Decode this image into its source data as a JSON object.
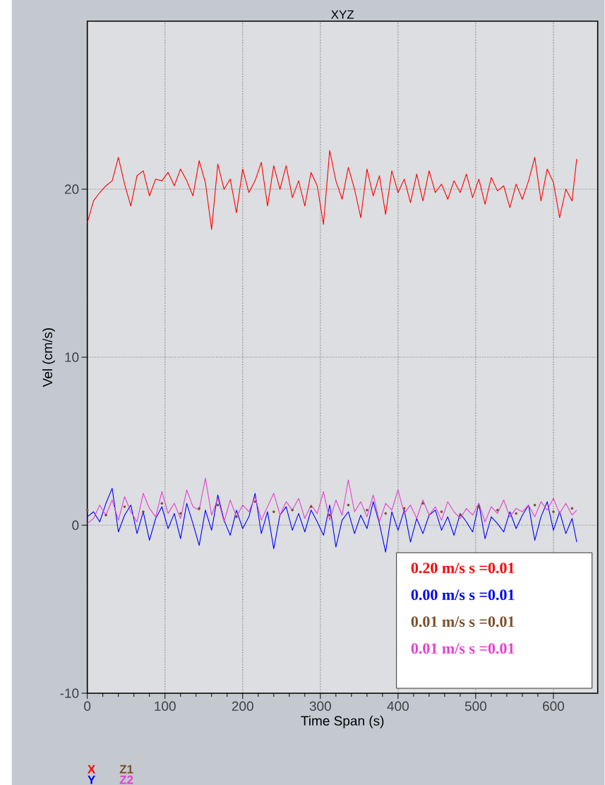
{
  "chart_data": {
    "type": "line",
    "title": "XYZ",
    "xlabel": "Time Span (s)",
    "ylabel": "Vel (cm/s)",
    "x": [
      0,
      8,
      16,
      24,
      32,
      40,
      48,
      56,
      64,
      72,
      80,
      88,
      96,
      104,
      112,
      120,
      128,
      136,
      144,
      152,
      160,
      168,
      176,
      184,
      192,
      200,
      208,
      216,
      224,
      232,
      240,
      248,
      256,
      264,
      272,
      280,
      288,
      296,
      304,
      312,
      320,
      328,
      336,
      344,
      352,
      360,
      368,
      376,
      384,
      392,
      400,
      408,
      416,
      424,
      432,
      440,
      448,
      456,
      464,
      472,
      480,
      488,
      496,
      504,
      512,
      520,
      528,
      536,
      544,
      552,
      560,
      568,
      576,
      584,
      592,
      600,
      608,
      616,
      624,
      630
    ],
    "series": [
      {
        "name": "X",
        "color": "#ff0000",
        "values": [
          18.0,
          19.3,
          19.8,
          20.2,
          20.5,
          21.9,
          20.3,
          19.0,
          20.8,
          21.1,
          19.6,
          20.6,
          20.5,
          21.0,
          20.2,
          21.2,
          20.5,
          19.6,
          21.7,
          20.4,
          17.6,
          21.5,
          20.0,
          20.6,
          18.6,
          21.2,
          19.8,
          20.5,
          21.6,
          19.0,
          21.4,
          20.0,
          21.4,
          19.5,
          20.5,
          19.0,
          21.0,
          20.2,
          17.9,
          22.3,
          20.5,
          19.4,
          21.3,
          20.0,
          18.3,
          21.2,
          19.6,
          20.8,
          18.5,
          21.1,
          19.8,
          20.6,
          19.2,
          20.9,
          19.3,
          21.1,
          19.8,
          20.3,
          19.4,
          20.5,
          19.8,
          20.9,
          19.5,
          20.6,
          19.1,
          20.7,
          19.9,
          20.2,
          18.9,
          20.3,
          19.4,
          20.5,
          21.9,
          19.3,
          21.2,
          20.4,
          18.3,
          20.0,
          19.3,
          21.8
        ]
      },
      {
        "name": "Y",
        "color": "#0000ff",
        "values": [
          0.5,
          0.8,
          0.2,
          1.3,
          2.2,
          -0.4,
          0.6,
          1.2,
          -0.5,
          0.8,
          -0.9,
          0.4,
          1.1,
          -0.2,
          0.7,
          -0.8,
          1.3,
          0.1,
          -1.2,
          0.9,
          -0.3,
          1.8,
          0.3,
          -0.6,
          0.9,
          -0.2,
          0.5,
          1.9,
          -0.5,
          0.8,
          -1.4,
          0.6,
          1.1,
          -0.3,
          0.7,
          -0.4,
          0.9,
          0.2,
          -0.6,
          1.2,
          -1.3,
          0.3,
          0.8,
          -0.5,
          0.6,
          -0.2,
          1.4,
          0.1,
          -1.6,
          0.8,
          -0.3,
          0.9,
          -1.0,
          0.4,
          -0.5,
          0.6,
          0.9,
          -0.3,
          0.5,
          -0.6,
          0.7,
          0.2,
          -0.4,
          1.3,
          -0.8,
          0.5,
          0.1,
          -0.4,
          0.8,
          -0.2,
          0.6,
          1.2,
          -0.9,
          0.5,
          1.4,
          -0.3,
          0.8,
          -0.5,
          0.4,
          -1.0
        ]
      },
      {
        "name": "Z2",
        "color": "#e83fd0",
        "values": [
          0.1,
          0.4,
          1.2,
          0.6,
          1.5,
          0.3,
          1.7,
          0.8,
          0.2,
          1.9,
          1.0,
          0.5,
          2.0,
          0.7,
          1.3,
          0.4,
          2.1,
          1.1,
          0.9,
          2.8,
          0.6,
          1.6,
          0.2,
          1.5,
          0.5,
          1.2,
          0.8,
          1.7,
          0.3,
          1.1,
          1.9,
          0.6,
          1.4,
          0.9,
          1.6,
          0.4,
          1.2,
          0.7,
          2.0,
          0.3,
          1.5,
          0.6,
          2.7,
          0.8,
          1.4,
          0.5,
          1.8,
          0.2,
          1.3,
          0.9,
          2.1,
          0.7,
          1.2,
          0.4,
          1.5,
          0.6,
          1.1,
          0.3,
          1.4,
          0.8,
          0.4,
          1.0,
          0.6,
          1.3,
          0.2,
          1.1,
          0.7,
          1.5,
          0.5,
          1.0,
          0.8,
          1.2,
          0.5,
          1.4,
          0.9,
          1.6,
          0.7,
          1.3,
          0.6,
          0.9
        ]
      },
      {
        "name": "Z1",
        "type": "scatter",
        "color": "#7b4f2a",
        "x": [
          0,
          24,
          48,
          72,
          96,
          120,
          144,
          168,
          192,
          216,
          240,
          264,
          288,
          312,
          336,
          360,
          384,
          408,
          432,
          456,
          480,
          504,
          528,
          552,
          576,
          600,
          624
        ],
        "values": [
          0.9,
          0.6,
          1.1,
          0.8,
          1.3,
          0.7,
          1.0,
          1.2,
          0.5,
          1.4,
          0.8,
          0.9,
          1.1,
          0.6,
          1.2,
          0.9,
          0.7,
          1.0,
          1.3,
          0.8,
          0.6,
          1.1,
          0.9,
          0.7,
          1.2,
          0.8,
          1.0
        ]
      }
    ],
    "xlim": [
      0,
      657
    ],
    "ylim": [
      -10,
      30
    ],
    "xticks": [
      0,
      100,
      200,
      300,
      400,
      500,
      600
    ],
    "yticks": [
      -10,
      0,
      10,
      20
    ],
    "grid": true,
    "legend": "bottom left",
    "annotations": [
      "0.20 m/s s =0.01",
      "0.00 m/s s =0.01",
      "0.01 m/s s =0.01",
      "0.01 m/s s =0.01"
    ]
  }
}
